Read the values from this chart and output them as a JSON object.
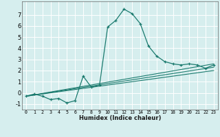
{
  "title": "",
  "xlabel": "Humidex (Indice chaleur)",
  "background_color": "#d6eeee",
  "grid_color": "#ffffff",
  "line_color": "#1a7a6e",
  "xlim": [
    -0.5,
    23.5
  ],
  "ylim": [
    -1.5,
    8.2
  ],
  "xticks": [
    0,
    1,
    2,
    3,
    4,
    5,
    6,
    7,
    8,
    9,
    10,
    11,
    12,
    13,
    14,
    15,
    16,
    17,
    18,
    19,
    20,
    21,
    22,
    23
  ],
  "yticks": [
    -1,
    0,
    1,
    2,
    3,
    4,
    5,
    6,
    7
  ],
  "curve1_x": [
    0,
    1,
    2,
    3,
    4,
    5,
    6,
    7,
    8,
    9,
    10,
    11,
    12,
    13,
    14,
    15,
    16,
    17,
    18,
    19,
    20,
    21,
    22,
    23
  ],
  "curve1_y": [
    -0.3,
    -0.1,
    -0.3,
    -0.6,
    -0.5,
    -0.9,
    -0.7,
    1.5,
    0.5,
    0.7,
    5.9,
    6.5,
    7.5,
    7.1,
    6.2,
    4.2,
    3.3,
    2.8,
    2.6,
    2.5,
    2.6,
    2.5,
    2.2,
    2.5
  ],
  "curve2_x": [
    0,
    23
  ],
  "curve2_y": [
    -0.3,
    2.6
  ],
  "curve3_x": [
    0,
    23
  ],
  "curve3_y": [
    -0.3,
    2.3
  ],
  "curve4_x": [
    0,
    23
  ],
  "curve4_y": [
    -0.3,
    2.0
  ],
  "xlabel_fontsize": 6.0,
  "tick_fontsize_x": 4.8,
  "tick_fontsize_y": 6.0
}
